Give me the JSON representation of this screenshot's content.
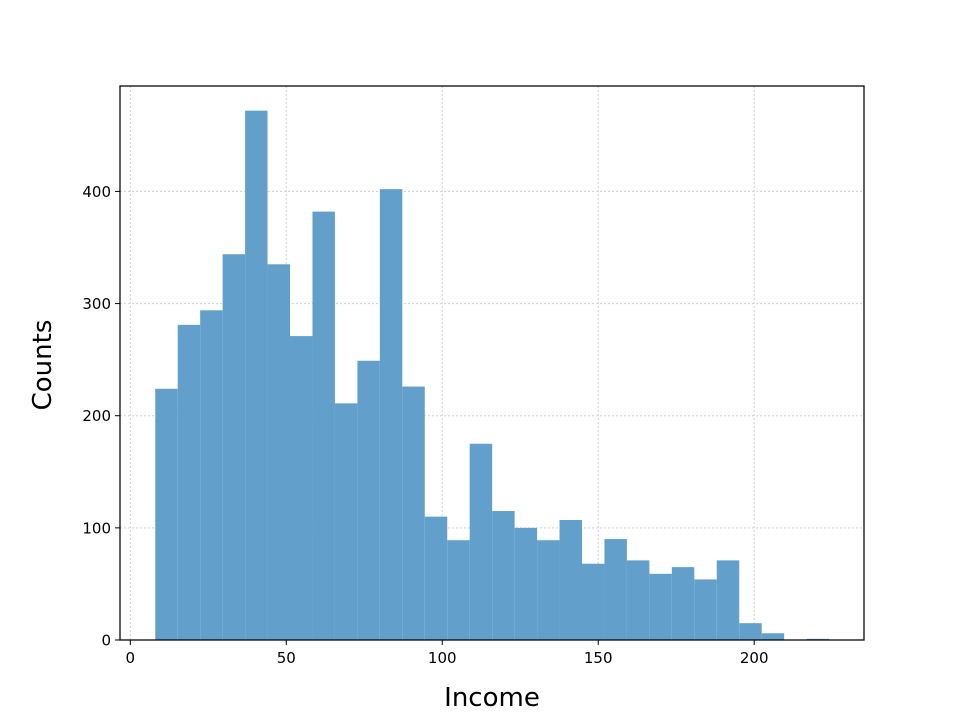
{
  "chart_data": {
    "type": "bar",
    "subtype": "histogram",
    "xlabel": "Income",
    "ylabel": "Counts",
    "xlim": [
      -3.3,
      235.2
    ],
    "ylim": [
      0,
      494
    ],
    "xticks": [
      0,
      50,
      100,
      150,
      200
    ],
    "yticks": [
      0,
      100,
      200,
      300,
      400
    ],
    "grid": true,
    "bar_color": "#62a0cb",
    "bin_edges": [
      8,
      15.2,
      22.4,
      29.6,
      36.8,
      44,
      51.2,
      58.4,
      65.6,
      72.8,
      80,
      87.2,
      94.4,
      101.6,
      108.8,
      116,
      123.2,
      130.4,
      137.6,
      144.8,
      152,
      159.2,
      166.4,
      173.6,
      180.8,
      188,
      195.2,
      202.4,
      209.6,
      216.8,
      224
    ],
    "values": [
      224,
      281,
      294,
      344,
      472,
      335,
      271,
      382,
      211,
      249,
      402,
      226,
      110,
      89,
      175,
      115,
      100,
      89,
      107,
      68,
      90,
      71,
      59,
      65,
      54,
      71,
      15,
      6,
      0,
      1
    ]
  }
}
